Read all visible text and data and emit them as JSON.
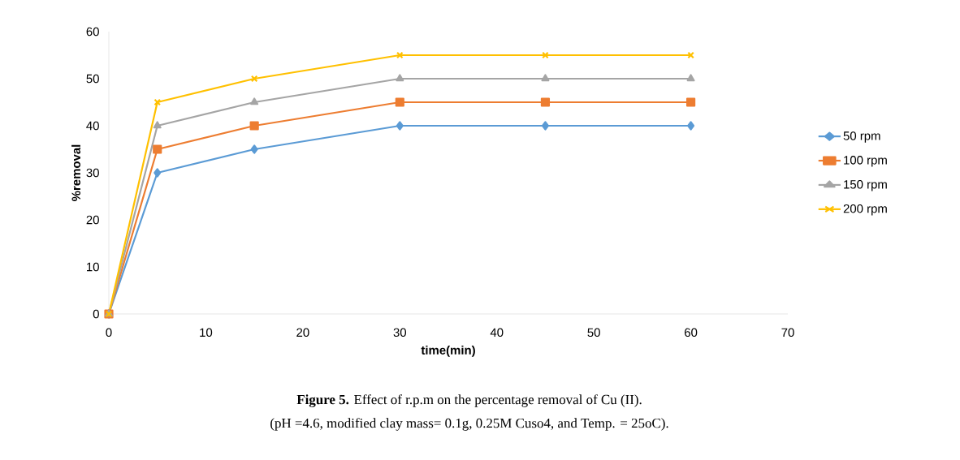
{
  "chart_data": {
    "type": "line",
    "xlabel": "time(min)",
    "ylabel": "%removal",
    "x": [
      0,
      5,
      15,
      30,
      45,
      60
    ],
    "series": [
      {
        "name": "50 rpm",
        "color": "#5b9bd5",
        "marker": "diamond",
        "values": [
          0,
          30,
          35,
          40,
          40,
          40
        ]
      },
      {
        "name": "100 rpm",
        "color": "#ed7d31",
        "marker": "square",
        "values": [
          0,
          35,
          40,
          45,
          45,
          45
        ]
      },
      {
        "name": "150 rpm",
        "color": "#a5a5a5",
        "marker": "triangle",
        "values": [
          0,
          40,
          45,
          50,
          50,
          50
        ]
      },
      {
        "name": "200 rpm",
        "color": "#ffc000",
        "marker": "cross",
        "values": [
          0,
          45,
          50,
          55,
          55,
          55
        ]
      }
    ],
    "xlim": [
      0,
      70
    ],
    "xticks": [
      0,
      10,
      20,
      30,
      40,
      50,
      60,
      70
    ],
    "ylim": [
      0,
      60
    ],
    "yticks": [
      0,
      10,
      20,
      30,
      40,
      50,
      60
    ],
    "grid": false,
    "legend": "right",
    "line_style": "solid",
    "annotations": [
      "**Figure 5.** Effect of r.p.m on the percentage removal of Cu (II).",
      "(pH =4.6, modified clay mass= 0.1g, 0.25M Cuso4, and Temp. = 25oC)."
    ]
  }
}
